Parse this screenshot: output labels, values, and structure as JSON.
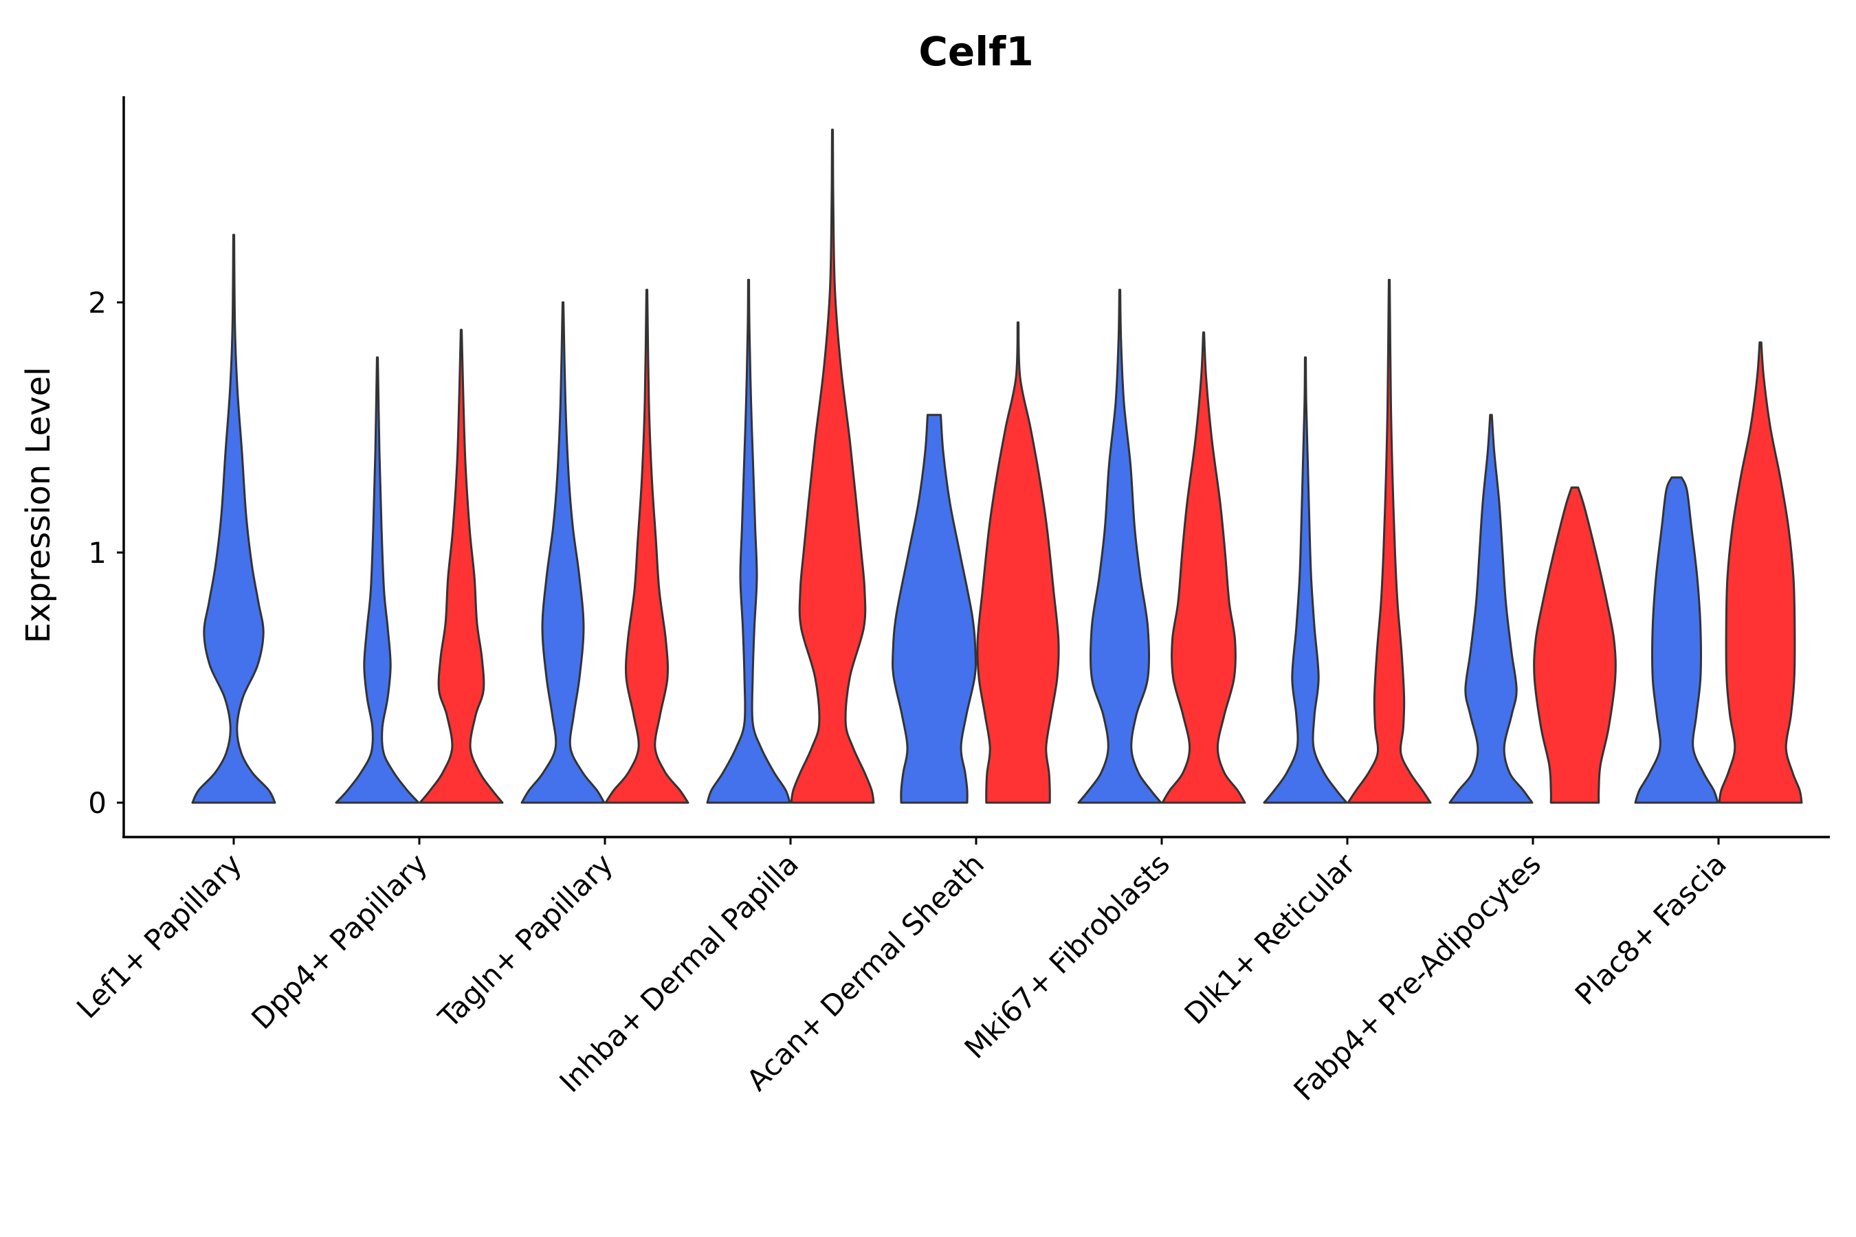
{
  "chart_data": {
    "type": "violin",
    "title": "Celf1",
    "xlabel": "",
    "ylabel": "Expression Level",
    "ylim": [
      -0.13,
      2.8
    ],
    "yticks": [
      0,
      1,
      2
    ],
    "grid": false,
    "legend": "none",
    "colors": {
      "group_a": "#4472ec",
      "group_b": "#ff3333",
      "outline": "#333333"
    },
    "categories": [
      "Lef1+ Papillary",
      "Dpp4+ Papillary",
      "Tagln+ Papillary",
      "Inhba+ Dermal Papilla",
      "Acan+ Dermal Sheath",
      "Mki67+ Fibroblasts",
      "Dlk1+ Reticular",
      "Fabp4+ Pre-Adipocytes",
      "Plac8+ Fascia"
    ],
    "violins": [
      {
        "category": "Lef1+ Papillary",
        "group": "a",
        "max": 2.27,
        "profile": [
          [
            0,
            1.0
          ],
          [
            0.05,
            0.85
          ],
          [
            0.12,
            0.45
          ],
          [
            0.2,
            0.18
          ],
          [
            0.3,
            0.08
          ],
          [
            0.42,
            0.22
          ],
          [
            0.55,
            0.58
          ],
          [
            0.68,
            0.72
          ],
          [
            0.8,
            0.6
          ],
          [
            0.95,
            0.44
          ],
          [
            1.15,
            0.3
          ],
          [
            1.4,
            0.2
          ],
          [
            1.65,
            0.09
          ],
          [
            1.9,
            0.03
          ],
          [
            2.27,
            0.01
          ]
        ]
      },
      {
        "category": "Dpp4+ Papillary",
        "group": "a",
        "max": 1.78,
        "profile": [
          [
            0,
            1.0
          ],
          [
            0.05,
            0.72
          ],
          [
            0.12,
            0.4
          ],
          [
            0.2,
            0.15
          ],
          [
            0.3,
            0.12
          ],
          [
            0.42,
            0.25
          ],
          [
            0.55,
            0.32
          ],
          [
            0.7,
            0.25
          ],
          [
            0.85,
            0.16
          ],
          [
            1.1,
            0.1
          ],
          [
            1.4,
            0.05
          ],
          [
            1.78,
            0.01
          ]
        ]
      },
      {
        "category": "Dpp4+ Papillary",
        "group": "b",
        "max": 1.89,
        "profile": [
          [
            0,
            1.0
          ],
          [
            0.05,
            0.75
          ],
          [
            0.12,
            0.45
          ],
          [
            0.22,
            0.22
          ],
          [
            0.35,
            0.35
          ],
          [
            0.45,
            0.54
          ],
          [
            0.58,
            0.5
          ],
          [
            0.72,
            0.38
          ],
          [
            0.9,
            0.32
          ],
          [
            1.1,
            0.2
          ],
          [
            1.4,
            0.09
          ],
          [
            1.89,
            0.01
          ]
        ]
      },
      {
        "category": "Tagln+ Papillary",
        "group": "a",
        "max": 2.0,
        "profile": [
          [
            0,
            1.0
          ],
          [
            0.05,
            0.82
          ],
          [
            0.12,
            0.48
          ],
          [
            0.22,
            0.18
          ],
          [
            0.35,
            0.26
          ],
          [
            0.5,
            0.4
          ],
          [
            0.7,
            0.5
          ],
          [
            0.9,
            0.4
          ],
          [
            1.1,
            0.24
          ],
          [
            1.3,
            0.14
          ],
          [
            1.6,
            0.06
          ],
          [
            2.0,
            0.01
          ]
        ]
      },
      {
        "category": "Tagln+ Papillary",
        "group": "b",
        "max": 2.05,
        "profile": [
          [
            0,
            1.0
          ],
          [
            0.05,
            0.8
          ],
          [
            0.12,
            0.45
          ],
          [
            0.22,
            0.2
          ],
          [
            0.35,
            0.32
          ],
          [
            0.5,
            0.5
          ],
          [
            0.65,
            0.46
          ],
          [
            0.85,
            0.3
          ],
          [
            1.05,
            0.22
          ],
          [
            1.3,
            0.12
          ],
          [
            1.6,
            0.05
          ],
          [
            2.05,
            0.01
          ]
        ]
      },
      {
        "category": "Inhba+ Dermal Papilla",
        "group": "a",
        "max": 2.09,
        "profile": [
          [
            0,
            1.0
          ],
          [
            0.05,
            0.9
          ],
          [
            0.12,
            0.62
          ],
          [
            0.22,
            0.3
          ],
          [
            0.32,
            0.1
          ],
          [
            0.5,
            0.1
          ],
          [
            0.7,
            0.14
          ],
          [
            0.9,
            0.2
          ],
          [
            1.1,
            0.16
          ],
          [
            1.3,
            0.12
          ],
          [
            1.6,
            0.06
          ],
          [
            1.9,
            0.02
          ],
          [
            2.09,
            0.01
          ]
        ]
      },
      {
        "category": "Inhba+ Dermal Papilla",
        "group": "b",
        "max": 2.69,
        "profile": [
          [
            0,
            1.0
          ],
          [
            0.05,
            0.95
          ],
          [
            0.12,
            0.78
          ],
          [
            0.22,
            0.5
          ],
          [
            0.32,
            0.32
          ],
          [
            0.5,
            0.42
          ],
          [
            0.7,
            0.76
          ],
          [
            0.85,
            0.78
          ],
          [
            1.0,
            0.7
          ],
          [
            1.2,
            0.58
          ],
          [
            1.45,
            0.42
          ],
          [
            1.75,
            0.2
          ],
          [
            2.05,
            0.06
          ],
          [
            2.4,
            0.02
          ],
          [
            2.69,
            0.01
          ]
        ]
      },
      {
        "category": "Acan+ Dermal Sheath",
        "group": "a",
        "max": 1.55,
        "profile": [
          [
            0,
            0.8
          ],
          [
            0.05,
            0.8
          ],
          [
            0.12,
            0.75
          ],
          [
            0.22,
            0.65
          ],
          [
            0.35,
            0.78
          ],
          [
            0.5,
            0.98
          ],
          [
            0.6,
            1.0
          ],
          [
            0.75,
            0.92
          ],
          [
            1.0,
            0.62
          ],
          [
            1.2,
            0.38
          ],
          [
            1.4,
            0.22
          ],
          [
            1.55,
            0.16
          ]
        ]
      },
      {
        "category": "Acan+ Dermal Sheath",
        "group": "b",
        "max": 1.92,
        "profile": [
          [
            0,
            0.77
          ],
          [
            0.05,
            0.77
          ],
          [
            0.12,
            0.75
          ],
          [
            0.22,
            0.68
          ],
          [
            0.35,
            0.8
          ],
          [
            0.5,
            0.95
          ],
          [
            0.65,
            0.98
          ],
          [
            0.85,
            0.86
          ],
          [
            1.1,
            0.7
          ],
          [
            1.3,
            0.52
          ],
          [
            1.5,
            0.3
          ],
          [
            1.7,
            0.05
          ],
          [
            1.92,
            0.01
          ]
        ]
      },
      {
        "category": "Mki67+ Fibroblasts",
        "group": "a",
        "max": 2.05,
        "profile": [
          [
            0,
            1.0
          ],
          [
            0.05,
            0.75
          ],
          [
            0.12,
            0.45
          ],
          [
            0.22,
            0.28
          ],
          [
            0.35,
            0.4
          ],
          [
            0.5,
            0.68
          ],
          [
            0.7,
            0.68
          ],
          [
            0.9,
            0.5
          ],
          [
            1.1,
            0.36
          ],
          [
            1.35,
            0.26
          ],
          [
            1.6,
            0.1
          ],
          [
            1.85,
            0.03
          ],
          [
            2.05,
            0.01
          ]
        ]
      },
      {
        "category": "Mki67+ Fibroblasts",
        "group": "b",
        "max": 1.88,
        "profile": [
          [
            0,
            1.0
          ],
          [
            0.05,
            0.82
          ],
          [
            0.12,
            0.5
          ],
          [
            0.22,
            0.34
          ],
          [
            0.35,
            0.5
          ],
          [
            0.5,
            0.74
          ],
          [
            0.65,
            0.76
          ],
          [
            0.8,
            0.62
          ],
          [
            1.0,
            0.52
          ],
          [
            1.2,
            0.4
          ],
          [
            1.45,
            0.2
          ],
          [
            1.7,
            0.06
          ],
          [
            1.88,
            0.01
          ]
        ]
      },
      {
        "category": "Dlk1+ Reticular",
        "group": "a",
        "max": 1.78,
        "profile": [
          [
            0,
            1.0
          ],
          [
            0.05,
            0.75
          ],
          [
            0.12,
            0.45
          ],
          [
            0.22,
            0.2
          ],
          [
            0.35,
            0.22
          ],
          [
            0.5,
            0.32
          ],
          [
            0.7,
            0.22
          ],
          [
            0.9,
            0.14
          ],
          [
            1.1,
            0.1
          ],
          [
            1.35,
            0.06
          ],
          [
            1.6,
            0.02
          ],
          [
            1.78,
            0.01
          ]
        ]
      },
      {
        "category": "Dlk1+ Reticular",
        "group": "b",
        "max": 2.09,
        "profile": [
          [
            0,
            1.0
          ],
          [
            0.05,
            0.8
          ],
          [
            0.12,
            0.5
          ],
          [
            0.2,
            0.28
          ],
          [
            0.3,
            0.34
          ],
          [
            0.42,
            0.36
          ],
          [
            0.6,
            0.3
          ],
          [
            0.8,
            0.2
          ],
          [
            1.0,
            0.14
          ],
          [
            1.3,
            0.08
          ],
          [
            1.6,
            0.04
          ],
          [
            2.09,
            0.01
          ]
        ]
      },
      {
        "category": "Fabp4+ Pre-Adipocytes",
        "group": "a",
        "max": 1.55,
        "profile": [
          [
            0,
            1.0
          ],
          [
            0.05,
            0.78
          ],
          [
            0.12,
            0.45
          ],
          [
            0.22,
            0.32
          ],
          [
            0.35,
            0.5
          ],
          [
            0.45,
            0.62
          ],
          [
            0.6,
            0.5
          ],
          [
            0.8,
            0.36
          ],
          [
            1.0,
            0.28
          ],
          [
            1.2,
            0.2
          ],
          [
            1.4,
            0.08
          ],
          [
            1.55,
            0.02
          ]
        ]
      },
      {
        "category": "Fabp4+ Pre-Adipocytes",
        "group": "b",
        "max": 1.26,
        "profile": [
          [
            0,
            0.58
          ],
          [
            0.05,
            0.58
          ],
          [
            0.15,
            0.62
          ],
          [
            0.3,
            0.82
          ],
          [
            0.5,
            0.98
          ],
          [
            0.65,
            0.95
          ],
          [
            0.8,
            0.78
          ],
          [
            0.95,
            0.58
          ],
          [
            1.1,
            0.36
          ],
          [
            1.2,
            0.2
          ],
          [
            1.26,
            0.08
          ]
        ]
      },
      {
        "category": "Plac8+ Fascia",
        "group": "a",
        "max": 1.3,
        "profile": [
          [
            0,
            1.0
          ],
          [
            0.05,
            0.9
          ],
          [
            0.12,
            0.65
          ],
          [
            0.22,
            0.4
          ],
          [
            0.35,
            0.48
          ],
          [
            0.5,
            0.58
          ],
          [
            0.7,
            0.58
          ],
          [
            0.9,
            0.5
          ],
          [
            1.1,
            0.36
          ],
          [
            1.25,
            0.25
          ],
          [
            1.3,
            0.12
          ]
        ]
      },
      {
        "category": "Plac8+ Fascia",
        "group": "b",
        "max": 1.84,
        "profile": [
          [
            0,
            1.0
          ],
          [
            0.05,
            0.95
          ],
          [
            0.12,
            0.78
          ],
          [
            0.22,
            0.62
          ],
          [
            0.35,
            0.74
          ],
          [
            0.5,
            0.82
          ],
          [
            0.7,
            0.83
          ],
          [
            0.9,
            0.8
          ],
          [
            1.1,
            0.68
          ],
          [
            1.3,
            0.48
          ],
          [
            1.5,
            0.24
          ],
          [
            1.7,
            0.08
          ],
          [
            1.84,
            0.02
          ]
        ]
      }
    ]
  }
}
